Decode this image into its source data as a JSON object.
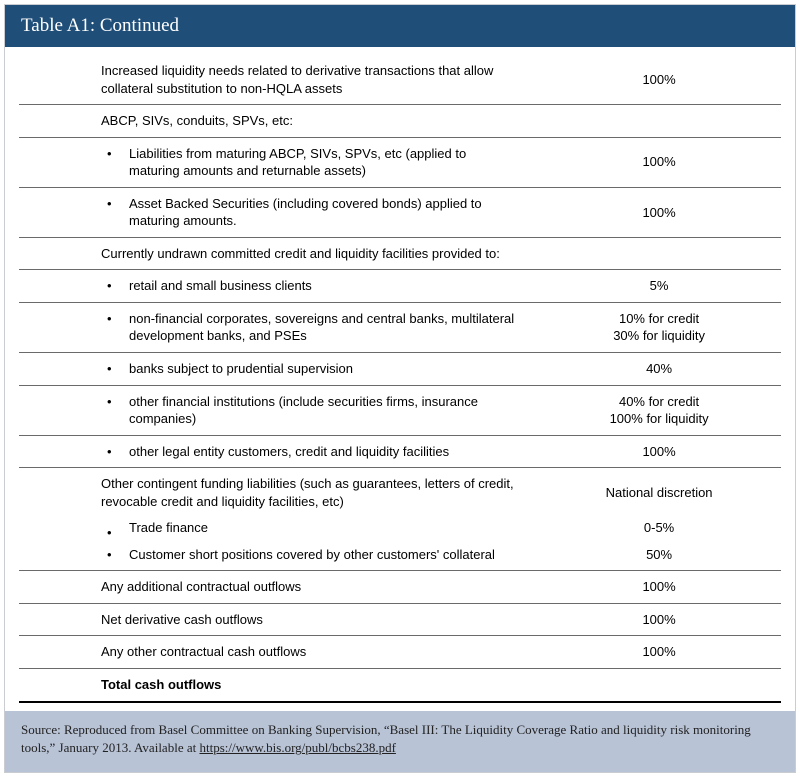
{
  "title": "Table A1: Continued",
  "rows": {
    "r1": {
      "label": "Increased liquidity needs related to derivative transactions that allow collateral substitution to non-HQLA assets",
      "value": "100%"
    },
    "r2": {
      "label": "ABCP, SIVs, conduits, SPVs, etc:",
      "value": ""
    },
    "r3": {
      "label": "Liabilities from maturing ABCP, SIVs, SPVs, etc (applied to maturing amounts and returnable assets)",
      "value": "100%"
    },
    "r4": {
      "label": "Asset Backed Securities (including covered bonds) applied to maturing amounts.",
      "value": "100%"
    },
    "r5": {
      "label": "Currently undrawn committed credit and liquidity facilities provided to:",
      "value": ""
    },
    "r6": {
      "label": "retail and small business clients",
      "value": "5%"
    },
    "r7": {
      "label": "non-financial corporates, sovereigns and central banks, multilateral development banks, and PSEs",
      "v1": "10% for credit",
      "v2": "30% for liquidity"
    },
    "r8": {
      "label": "banks subject to prudential supervision",
      "value": "40%"
    },
    "r9": {
      "label": "other financial institutions (include securities firms, insurance companies)",
      "v1": "40% for  credit",
      "v2": "100% for liquidity"
    },
    "r10": {
      "label": "other legal entity customers, credit and liquidity facilities",
      "value": "100%"
    },
    "r11": {
      "label": "Other contingent funding liabilities (such as guarantees, letters of credit, revocable credit and liquidity facilities, etc)",
      "value": "National discretion"
    },
    "r11a": {
      "label": "Trade finance",
      "value": "0-5%"
    },
    "r11b": {
      "label": "Customer short positions covered by other customers' collateral",
      "value": "50%"
    },
    "r12": {
      "label": "Any additional contractual outflows",
      "value": "100%"
    },
    "r13": {
      "label": "Net derivative cash outflows",
      "value": "100%"
    },
    "r14": {
      "label": "Any other contractual cash outflows",
      "value": "100%"
    },
    "total": {
      "label": "Total cash outflows",
      "value": ""
    }
  },
  "source": {
    "prefix": "Source: Reproduced from Basel Committee on Banking Supervision, “Basel III: The Liquidity Coverage Ratio and liquidity risk monitoring tools,” January 2013. Available at ",
    "link": "https://www.bis.org/publ/bcbs238.pdf"
  }
}
